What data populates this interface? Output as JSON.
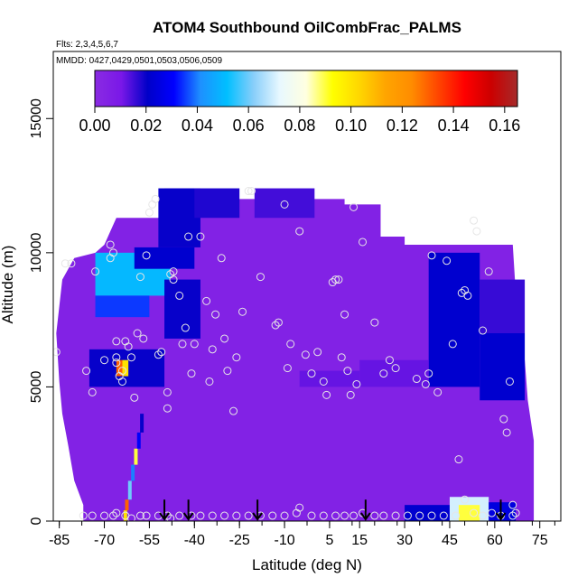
{
  "chart_data": {
    "type": "heatmap",
    "title": "ATOM4 Southbound OilCombFrac_PALMS",
    "subtitle_flights": "Flts: 2,3,4,5,6,7",
    "subtitle_dates": "MMDD: 0427,0429,0501,0503,0506,0509",
    "xlabel": "Latitude (deg N)",
    "ylabel": "Altitude (m)",
    "xlim": [
      -87,
      82
    ],
    "ylim": [
      0,
      17500
    ],
    "x_ticks": [
      -85,
      -70,
      -55,
      -40,
      -25,
      -10,
      5,
      15,
      30,
      45,
      60,
      75
    ],
    "y_ticks": [
      0,
      5000,
      10000,
      15000
    ],
    "colorbar": {
      "min": 0.0,
      "max": 0.165,
      "ticks": [
        "0.00",
        "0.02",
        "0.04",
        "0.06",
        "0.08",
        "0.10",
        "0.12",
        "0.14",
        "0.16"
      ],
      "tick_values": [
        0.0,
        0.02,
        0.04,
        0.06,
        0.08,
        0.1,
        0.12,
        0.14,
        0.16
      ],
      "colors": [
        "#8a2be2",
        "#7a18e8",
        "#0000c8",
        "#0000ff",
        "#1e90ff",
        "#00bfff",
        "#87cefa",
        "#e8f8ff",
        "#ffffe0",
        "#ffff00",
        "#ffd700",
        "#ffa500",
        "#ff8c00",
        "#ff4500",
        "#ff0000",
        "#cc0000",
        "#a52a2a"
      ]
    },
    "background_value": 0.005,
    "regions": [
      {
        "lat": [
          -73,
          -48
        ],
        "alt": [
          8400,
          10000
        ],
        "value": 0.05
      },
      {
        "lat": [
          -73,
          -55
        ],
        "alt": [
          7600,
          8400
        ],
        "value": 0.035
      },
      {
        "lat": [
          -60,
          -40
        ],
        "alt": [
          9400,
          10200
        ],
        "value": 0.022
      },
      {
        "lat": [
          -50,
          -38
        ],
        "alt": [
          6800,
          9000
        ],
        "value": 0.02
      },
      {
        "lat": [
          -52,
          -38
        ],
        "alt": [
          10200,
          12400
        ],
        "value": 0.02
      },
      {
        "lat": [
          -75,
          -50
        ],
        "alt": [
          5000,
          6400
        ],
        "value": 0.02
      },
      {
        "lat": [
          -40,
          -25
        ],
        "alt": [
          11300,
          12400
        ],
        "value": 0.018
      },
      {
        "lat": [
          -20,
          0
        ],
        "alt": [
          11300,
          12400
        ],
        "value": 0.015
      },
      {
        "lat": [
          38,
          55
        ],
        "alt": [
          5000,
          10000
        ],
        "value": 0.022
      },
      {
        "lat": [
          55,
          70
        ],
        "alt": [
          4500,
          7000
        ],
        "value": 0.022
      },
      {
        "lat": [
          55,
          70
        ],
        "alt": [
          7000,
          9000
        ],
        "value": 0.016
      },
      {
        "lat": [
          15,
          38
        ],
        "alt": [
          5000,
          6000
        ],
        "value": 0.012
      },
      {
        "lat": [
          -5,
          15
        ],
        "alt": [
          5000,
          5600
        ],
        "value": 0.012
      },
      {
        "lat": [
          30,
          45
        ],
        "alt": [
          0,
          600
        ],
        "value": 0.022
      },
      {
        "lat": [
          45,
          58
        ],
        "alt": [
          0,
          900
        ],
        "value": 0.07
      },
      {
        "lat": [
          48,
          55
        ],
        "alt": [
          0,
          600
        ],
        "value": 0.09
      },
      {
        "lat": [
          58,
          67
        ],
        "alt": [
          0,
          700
        ],
        "value": 0.025
      },
      {
        "lat": [
          -66,
          -64
        ],
        "alt": [
          5400,
          6000
        ],
        "value": 0.13
      },
      {
        "lat": [
          -64,
          -62
        ],
        "alt": [
          5400,
          6000
        ],
        "value": 0.1
      }
    ],
    "plume_column": [
      {
        "lat": -63,
        "alt": [
          0,
          400
        ],
        "value": 0.1
      },
      {
        "lat": -62.5,
        "alt": [
          400,
          800
        ],
        "value": 0.13
      },
      {
        "lat": -61.5,
        "alt": [
          800,
          1500
        ],
        "value": 0.06
      },
      {
        "lat": -60.5,
        "alt": [
          1500,
          2100
        ],
        "value": 0.04
      },
      {
        "lat": -59.5,
        "alt": [
          2100,
          2700
        ],
        "value": 0.09
      },
      {
        "lat": -58.5,
        "alt": [
          2700,
          3300
        ],
        "value": 0.03
      },
      {
        "lat": -57.5,
        "alt": [
          3300,
          4000
        ],
        "value": 0.02
      }
    ],
    "points": [
      [
        -86,
        6300
      ],
      [
        -83,
        9600
      ],
      [
        -81,
        9600
      ],
      [
        -76,
        5600
      ],
      [
        -74,
        4800
      ],
      [
        -73,
        9300
      ],
      [
        -70,
        6000
      ],
      [
        -68,
        10300
      ],
      [
        -68,
        9800
      ],
      [
        -67,
        10000
      ],
      [
        -66,
        6700
      ],
      [
        -66,
        6100
      ],
      [
        -66,
        5900
      ],
      [
        -65,
        5400
      ],
      [
        -64,
        5600
      ],
      [
        -64,
        5200
      ],
      [
        -63,
        6700
      ],
      [
        -62,
        6500
      ],
      [
        -61,
        6100
      ],
      [
        -60,
        4600
      ],
      [
        -59,
        7000
      ],
      [
        -58,
        9100
      ],
      [
        -57,
        6800
      ],
      [
        -56,
        9900
      ],
      [
        -55,
        11500
      ],
      [
        -54,
        11800
      ],
      [
        -53,
        12000
      ],
      [
        -52,
        6200
      ],
      [
        -51,
        6300
      ],
      [
        -49,
        4800
      ],
      [
        -49,
        4200
      ],
      [
        -48,
        9200
      ],
      [
        -47,
        9000
      ],
      [
        -47,
        9300
      ],
      [
        -45,
        8400
      ],
      [
        -44,
        6600
      ],
      [
        -43,
        7200
      ],
      [
        -42,
        10600
      ],
      [
        -41,
        5500
      ],
      [
        -40,
        6600
      ],
      [
        -38,
        10600
      ],
      [
        -36,
        8200
      ],
      [
        -35,
        5200
      ],
      [
        -34,
        6400
      ],
      [
        -33,
        7700
      ],
      [
        -31,
        9800
      ],
      [
        -30,
        6800
      ],
      [
        -29,
        5600
      ],
      [
        -27,
        4100
      ],
      [
        -26,
        6100
      ],
      [
        -24,
        7800
      ],
      [
        -22,
        12300
      ],
      [
        -21,
        12300
      ],
      [
        -18,
        9100
      ],
      [
        -13,
        7300
      ],
      [
        -12,
        7400
      ],
      [
        -10,
        11800
      ],
      [
        -9,
        5700
      ],
      [
        -8,
        6600
      ],
      [
        -5,
        10800
      ],
      [
        -3,
        6200
      ],
      [
        -1,
        5500
      ],
      [
        1,
        6300
      ],
      [
        3,
        5200
      ],
      [
        4,
        4700
      ],
      [
        6,
        8900
      ],
      [
        7,
        9000
      ],
      [
        8,
        9000
      ],
      [
        9,
        6100
      ],
      [
        10,
        7700
      ],
      [
        11,
        5600
      ],
      [
        12,
        4700
      ],
      [
        13,
        11700
      ],
      [
        14,
        5100
      ],
      [
        16,
        10400
      ],
      [
        20,
        7400
      ],
      [
        23,
        5500
      ],
      [
        25,
        6000
      ],
      [
        27,
        5700
      ],
      [
        34,
        5300
      ],
      [
        37,
        5100
      ],
      [
        38,
        5500
      ],
      [
        39,
        9900
      ],
      [
        41,
        4800
      ],
      [
        44,
        9700
      ],
      [
        46,
        6600
      ],
      [
        48,
        2300
      ],
      [
        49,
        8500
      ],
      [
        50,
        8600
      ],
      [
        51,
        8400
      ],
      [
        53,
        11200
      ],
      [
        54,
        10800
      ],
      [
        56,
        7100
      ],
      [
        58,
        9300
      ],
      [
        63,
        3800
      ],
      [
        64,
        3300
      ],
      [
        65,
        5200
      ],
      [
        66,
        600
      ],
      [
        67,
        300
      ],
      [
        -77,
        200
      ],
      [
        -74,
        200
      ],
      [
        -70,
        200
      ],
      [
        -67,
        200
      ],
      [
        -66,
        300
      ],
      [
        -63,
        200
      ],
      [
        -61,
        100
      ],
      [
        -58,
        200
      ],
      [
        -56,
        200
      ],
      [
        -52,
        200
      ],
      [
        -49,
        200
      ],
      [
        -48,
        100
      ],
      [
        -45,
        200
      ],
      [
        -41,
        200
      ],
      [
        -38,
        200
      ],
      [
        -34,
        200
      ],
      [
        -30,
        200
      ],
      [
        -26,
        200
      ],
      [
        -22,
        200
      ],
      [
        -18,
        200
      ],
      [
        -14,
        200
      ],
      [
        -10,
        200
      ],
      [
        -6,
        300
      ],
      [
        -5,
        500
      ],
      [
        -1,
        200
      ],
      [
        3,
        200
      ],
      [
        7,
        200
      ],
      [
        10,
        200
      ],
      [
        13,
        200
      ],
      [
        16,
        300
      ],
      [
        20,
        200
      ],
      [
        23,
        200
      ],
      [
        27,
        200
      ],
      [
        31,
        200
      ],
      [
        35,
        200
      ],
      [
        39,
        200
      ],
      [
        43,
        200
      ],
      [
        47,
        200
      ],
      [
        50,
        800
      ],
      [
        53,
        300
      ],
      [
        56,
        200
      ],
      [
        59,
        300
      ],
      [
        62,
        200
      ],
      [
        66,
        200
      ]
    ],
    "arrows_lat": [
      -50,
      -42,
      -19,
      17,
      62
    ],
    "grid": false,
    "legend": "top"
  }
}
